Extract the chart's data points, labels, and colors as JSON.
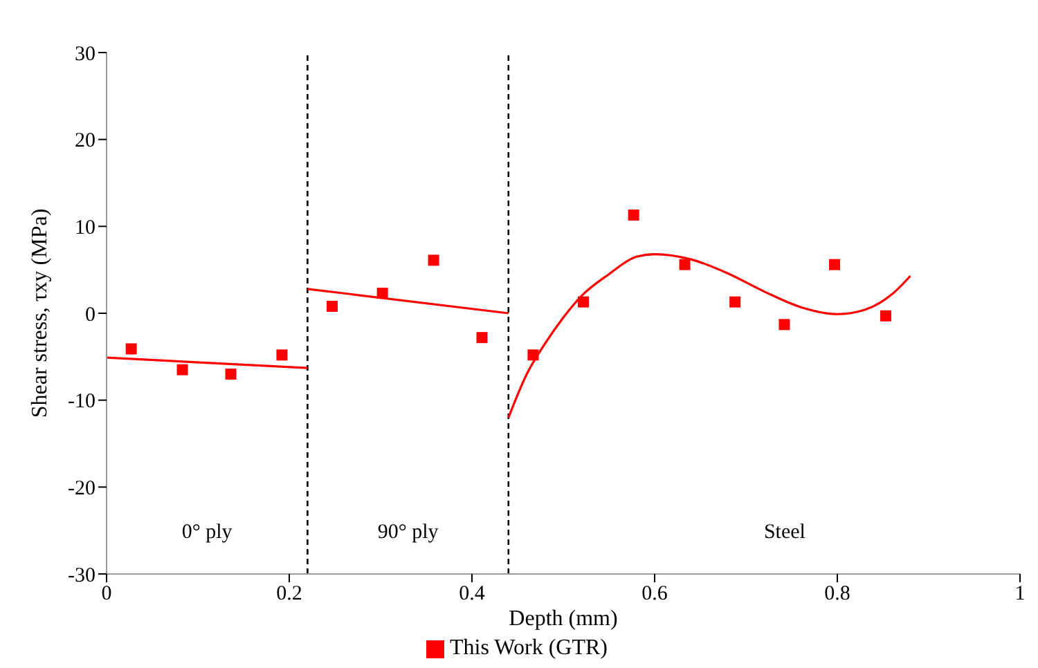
{
  "chart_data": {
    "type": "scatter",
    "xlabel": "Depth (mm)",
    "ylabel": "Shear stress, τxy (MPa)",
    "xlim": [
      0,
      1
    ],
    "xticks": [
      0,
      0.2,
      0.4,
      0.6,
      0.8,
      1
    ],
    "ylim": [
      -30,
      30
    ],
    "yticks": [
      -30,
      -20,
      -10,
      0,
      10,
      20,
      30
    ],
    "grid": false,
    "legend": "bottom",
    "series": [
      {
        "name": "This Work (GTR)",
        "marker": "square",
        "color": "#ff0000",
        "x": [
          0.027,
          0.083,
          0.136,
          0.192,
          0.247,
          0.302,
          0.358,
          0.411,
          0.467,
          0.522,
          0.577,
          0.633,
          0.688,
          0.742,
          0.797,
          0.853
        ],
        "values": [
          -4.1,
          -6.5,
          -7.0,
          -4.8,
          0.8,
          2.3,
          6.1,
          -2.8,
          -4.8,
          1.3,
          11.3,
          5.6,
          1.3,
          -1.3,
          5.6,
          -0.3
        ]
      },
      {
        "type": "line",
        "color": "#ff0000",
        "x": [
          0,
          0.22
        ],
        "values": [
          -5.1,
          -6.3
        ]
      },
      {
        "type": "line",
        "color": "#ff0000",
        "x": [
          0.22,
          0.44
        ],
        "values": [
          2.8,
          0.0
        ]
      },
      {
        "type": "line",
        "color": "#ff0000",
        "x": [
          0.44,
          0.46,
          0.48,
          0.5,
          0.52,
          0.55,
          0.58,
          0.6,
          0.64,
          0.68,
          0.72,
          0.76,
          0.8,
          0.83,
          0.86,
          0.88
        ],
        "values": [
          -12,
          -7,
          -3.5,
          -0.5,
          2,
          4.5,
          6.5,
          6.8,
          6.2,
          4.6,
          2.5,
          0.7,
          -0.1,
          0.4,
          2.2,
          4.3
        ]
      }
    ],
    "ref_lines": [
      {
        "axis": "x",
        "value": 0.22,
        "color": "#000000",
        "line_style": "dashed"
      },
      {
        "axis": "x",
        "value": 0.44,
        "color": "#000000",
        "line_style": "dashed"
      }
    ],
    "annotations": [
      "0° ply",
      "90° ply",
      "Steel"
    ]
  }
}
